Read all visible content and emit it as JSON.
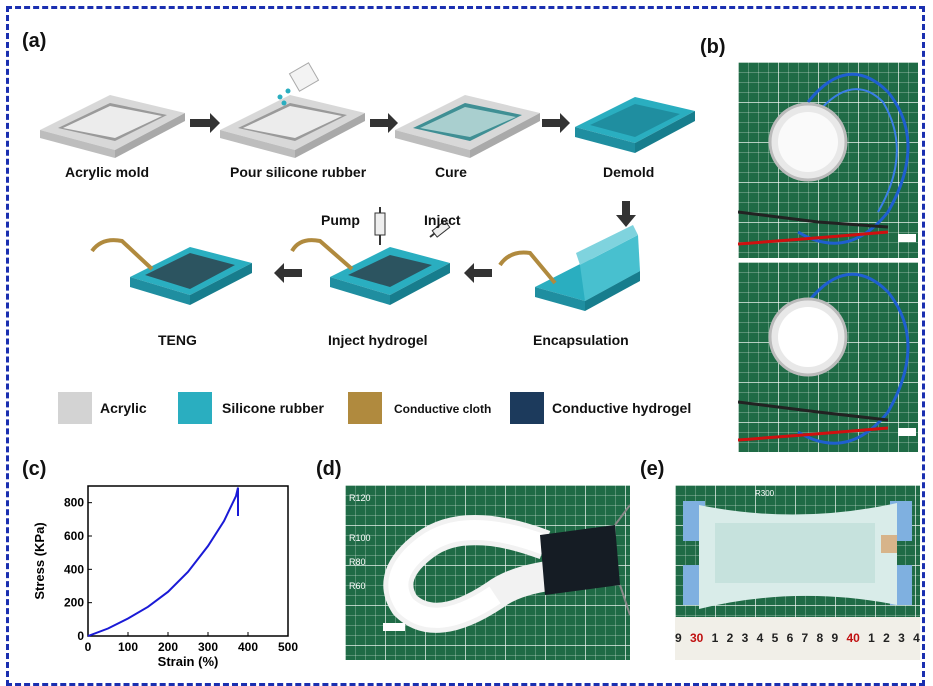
{
  "panels": {
    "a": "(a)",
    "b": "(b)",
    "c": "(c)",
    "d": "(d)",
    "e": "(e)"
  },
  "steps": {
    "acrylic_mold": "Acrylic mold",
    "pour": "Pour silicone rubber",
    "cure": "Cure",
    "demold": "Demold",
    "encapsulation": "Encapsulation",
    "inject_hydrogel": "Inject  hydrogel",
    "teng": "TENG",
    "pump": "Pump",
    "inject": "Inject"
  },
  "legend": [
    {
      "label": "Acrylic",
      "color": "#d3d3d3"
    },
    {
      "label": "Silicone rubber",
      "color": "#2aaec0"
    },
    {
      "label": "Conductive cloth",
      "color": "#b08a3e"
    },
    {
      "label": "Conductive hydrogel",
      "color": "#1c3a5c"
    }
  ],
  "ruler_d": [
    "R120",
    "R100",
    "R80",
    "R60"
  ],
  "ruler_e": {
    "top": "R300",
    "digits": [
      "9",
      "30",
      "1",
      "2",
      "3",
      "4",
      "5",
      "6",
      "7",
      "8",
      "9",
      "40",
      "1",
      "2",
      "3",
      "4"
    ]
  },
  "chart_data": {
    "type": "line",
    "xlabel": "Strain (%)",
    "ylabel": "Stress (KPa)",
    "xlim": [
      0,
      500
    ],
    "ylim": [
      0,
      900
    ],
    "xticks": [
      0,
      100,
      200,
      300,
      400,
      500
    ],
    "yticks": [
      0,
      200,
      400,
      600,
      800
    ],
    "series": [
      {
        "color": "#1a1ad6",
        "x": [
          0,
          50,
          100,
          150,
          200,
          250,
          300,
          340,
          370,
          375,
          375
        ],
        "y": [
          0,
          45,
          105,
          175,
          265,
          385,
          540,
          690,
          840,
          890,
          720
        ]
      }
    ]
  }
}
